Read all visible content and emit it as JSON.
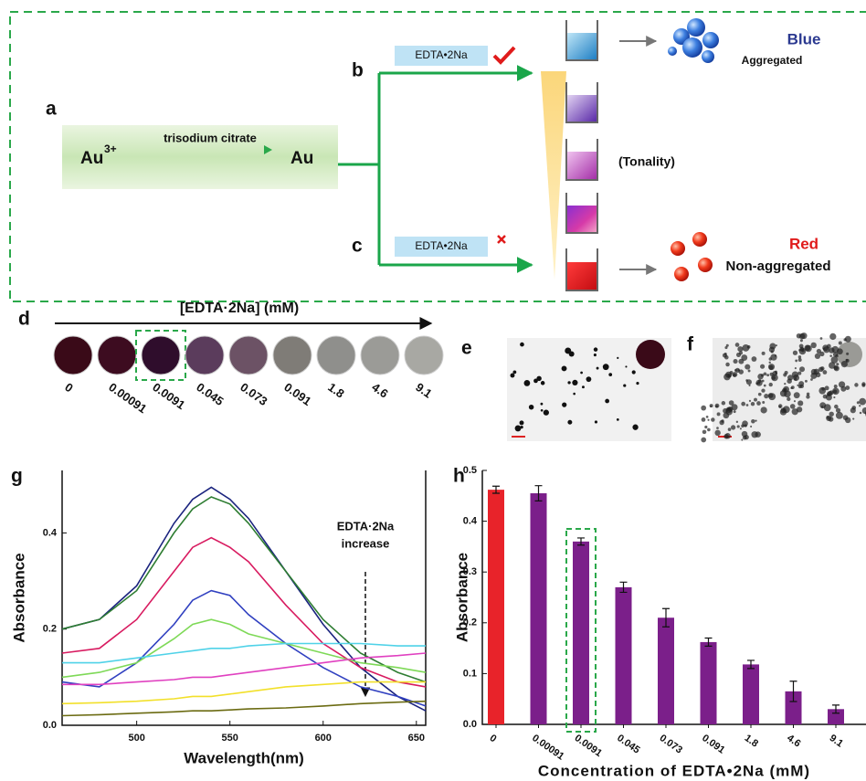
{
  "panel_labels": [
    "a",
    "b",
    "c",
    "d",
    "e",
    "f",
    "g",
    "h"
  ],
  "scheme": {
    "reactant": {
      "symbol": "Au",
      "charge": "3+"
    },
    "reagent": "trisodium citrate",
    "product": "Au",
    "branch_b": {
      "reagent": "EDTA•2Na"
    },
    "branch_c": {
      "reagent": "EDTA•2Na"
    },
    "middle": "(Tonality)",
    "top_result": {
      "color_name": "Blue",
      "state": "Aggregated"
    },
    "bottom_result": {
      "color_name": "Red",
      "state": "Non-aggregated"
    }
  },
  "panel_d": {
    "title": "[EDTA·2Na] (mM)",
    "samples": [
      {
        "label": "0",
        "color": "#3a0a18"
      },
      {
        "label": "0.00091",
        "color": "#3d0c20"
      },
      {
        "label": "0.0091",
        "color": "#2f0d2c"
      },
      {
        "label": "0.045",
        "color": "#5b3c5c"
      },
      {
        "label": "0.073",
        "color": "#6c5265"
      },
      {
        "label": "0.091",
        "color": "#7f7c77"
      },
      {
        "label": "1.8",
        "color": "#8f8f8c"
      },
      {
        "label": "4.6",
        "color": "#9b9b97"
      },
      {
        "label": "9.1",
        "color": "#a8a8a3"
      }
    ]
  },
  "chart_data": [
    {
      "type": "line",
      "xlabel": "Wavelength(nm)",
      "ylabel": "Absorbance",
      "annotation": [
        "EDTA·2Na",
        "increase"
      ],
      "x": [
        460,
        480,
        500,
        520,
        530,
        540,
        550,
        560,
        580,
        600,
        620,
        640,
        655
      ],
      "xlim": [
        460,
        655
      ],
      "xticks": [
        500,
        550,
        600,
        650
      ],
      "ylim": [
        0,
        0.53
      ],
      "yticks": [
        {
          "value": 0,
          "label": "0.0"
        },
        0.2,
        0.4
      ],
      "series": [
        {
          "color": "#1a237e",
          "values": [
            0.2,
            0.22,
            0.29,
            0.42,
            0.47,
            0.495,
            0.47,
            0.43,
            0.32,
            0.21,
            0.12,
            0.06,
            0.03
          ]
        },
        {
          "color": "#2e7d32",
          "values": [
            0.2,
            0.22,
            0.28,
            0.4,
            0.45,
            0.475,
            0.46,
            0.42,
            0.32,
            0.22,
            0.15,
            0.11,
            0.09
          ]
        },
        {
          "color": "#d81b60",
          "values": [
            0.15,
            0.16,
            0.22,
            0.32,
            0.37,
            0.39,
            0.37,
            0.34,
            0.25,
            0.17,
            0.12,
            0.09,
            0.08
          ]
        },
        {
          "color": "#3040c0",
          "values": [
            0.09,
            0.08,
            0.13,
            0.21,
            0.26,
            0.28,
            0.27,
            0.23,
            0.17,
            0.12,
            0.08,
            0.06,
            0.04
          ]
        },
        {
          "color": "#7ed957",
          "values": [
            0.1,
            0.11,
            0.13,
            0.18,
            0.21,
            0.22,
            0.21,
            0.19,
            0.17,
            0.15,
            0.13,
            0.12,
            0.11
          ]
        },
        {
          "color": "#4fd2e8",
          "values": [
            0.13,
            0.13,
            0.14,
            0.15,
            0.155,
            0.16,
            0.16,
            0.165,
            0.17,
            0.17,
            0.17,
            0.165,
            0.165
          ]
        },
        {
          "color": "#e040c0",
          "values": [
            0.085,
            0.085,
            0.09,
            0.095,
            0.1,
            0.1,
            0.105,
            0.11,
            0.12,
            0.13,
            0.14,
            0.145,
            0.15
          ]
        },
        {
          "color": "#f2e02a",
          "values": [
            0.045,
            0.047,
            0.05,
            0.055,
            0.06,
            0.06,
            0.065,
            0.07,
            0.08,
            0.085,
            0.09,
            0.09,
            0.09
          ]
        },
        {
          "color": "#6b6b12",
          "values": [
            0.02,
            0.022,
            0.025,
            0.028,
            0.03,
            0.03,
            0.032,
            0.034,
            0.036,
            0.04,
            0.045,
            0.048,
            0.05
          ]
        }
      ]
    },
    {
      "type": "bar",
      "xlabel": "Concentration of EDTA•2Na (mM)",
      "ylabel": "Absorbance",
      "categories": [
        "0",
        "0.00091",
        "0.0091",
        "0.045",
        "0.073",
        "0.091",
        "1.8",
        "4.6",
        "9.1"
      ],
      "values": [
        0.462,
        0.455,
        0.36,
        0.27,
        0.21,
        0.162,
        0.118,
        0.065,
        0.03
      ],
      "errors": [
        0.007,
        0.015,
        0.007,
        0.01,
        0.018,
        0.008,
        0.008,
        0.02,
        0.008
      ],
      "colors": [
        "#e8232a",
        "#7b1f8a",
        "#7b1f8a",
        "#7b1f8a",
        "#7b1f8a",
        "#7b1f8a",
        "#7b1f8a",
        "#7b1f8a",
        "#7b1f8a"
      ],
      "ylim": [
        0,
        0.5
      ],
      "yticks": [
        {
          "value": 0,
          "label": "0.0"
        },
        0.1,
        0.2,
        0.3,
        0.4,
        0.5
      ]
    }
  ]
}
